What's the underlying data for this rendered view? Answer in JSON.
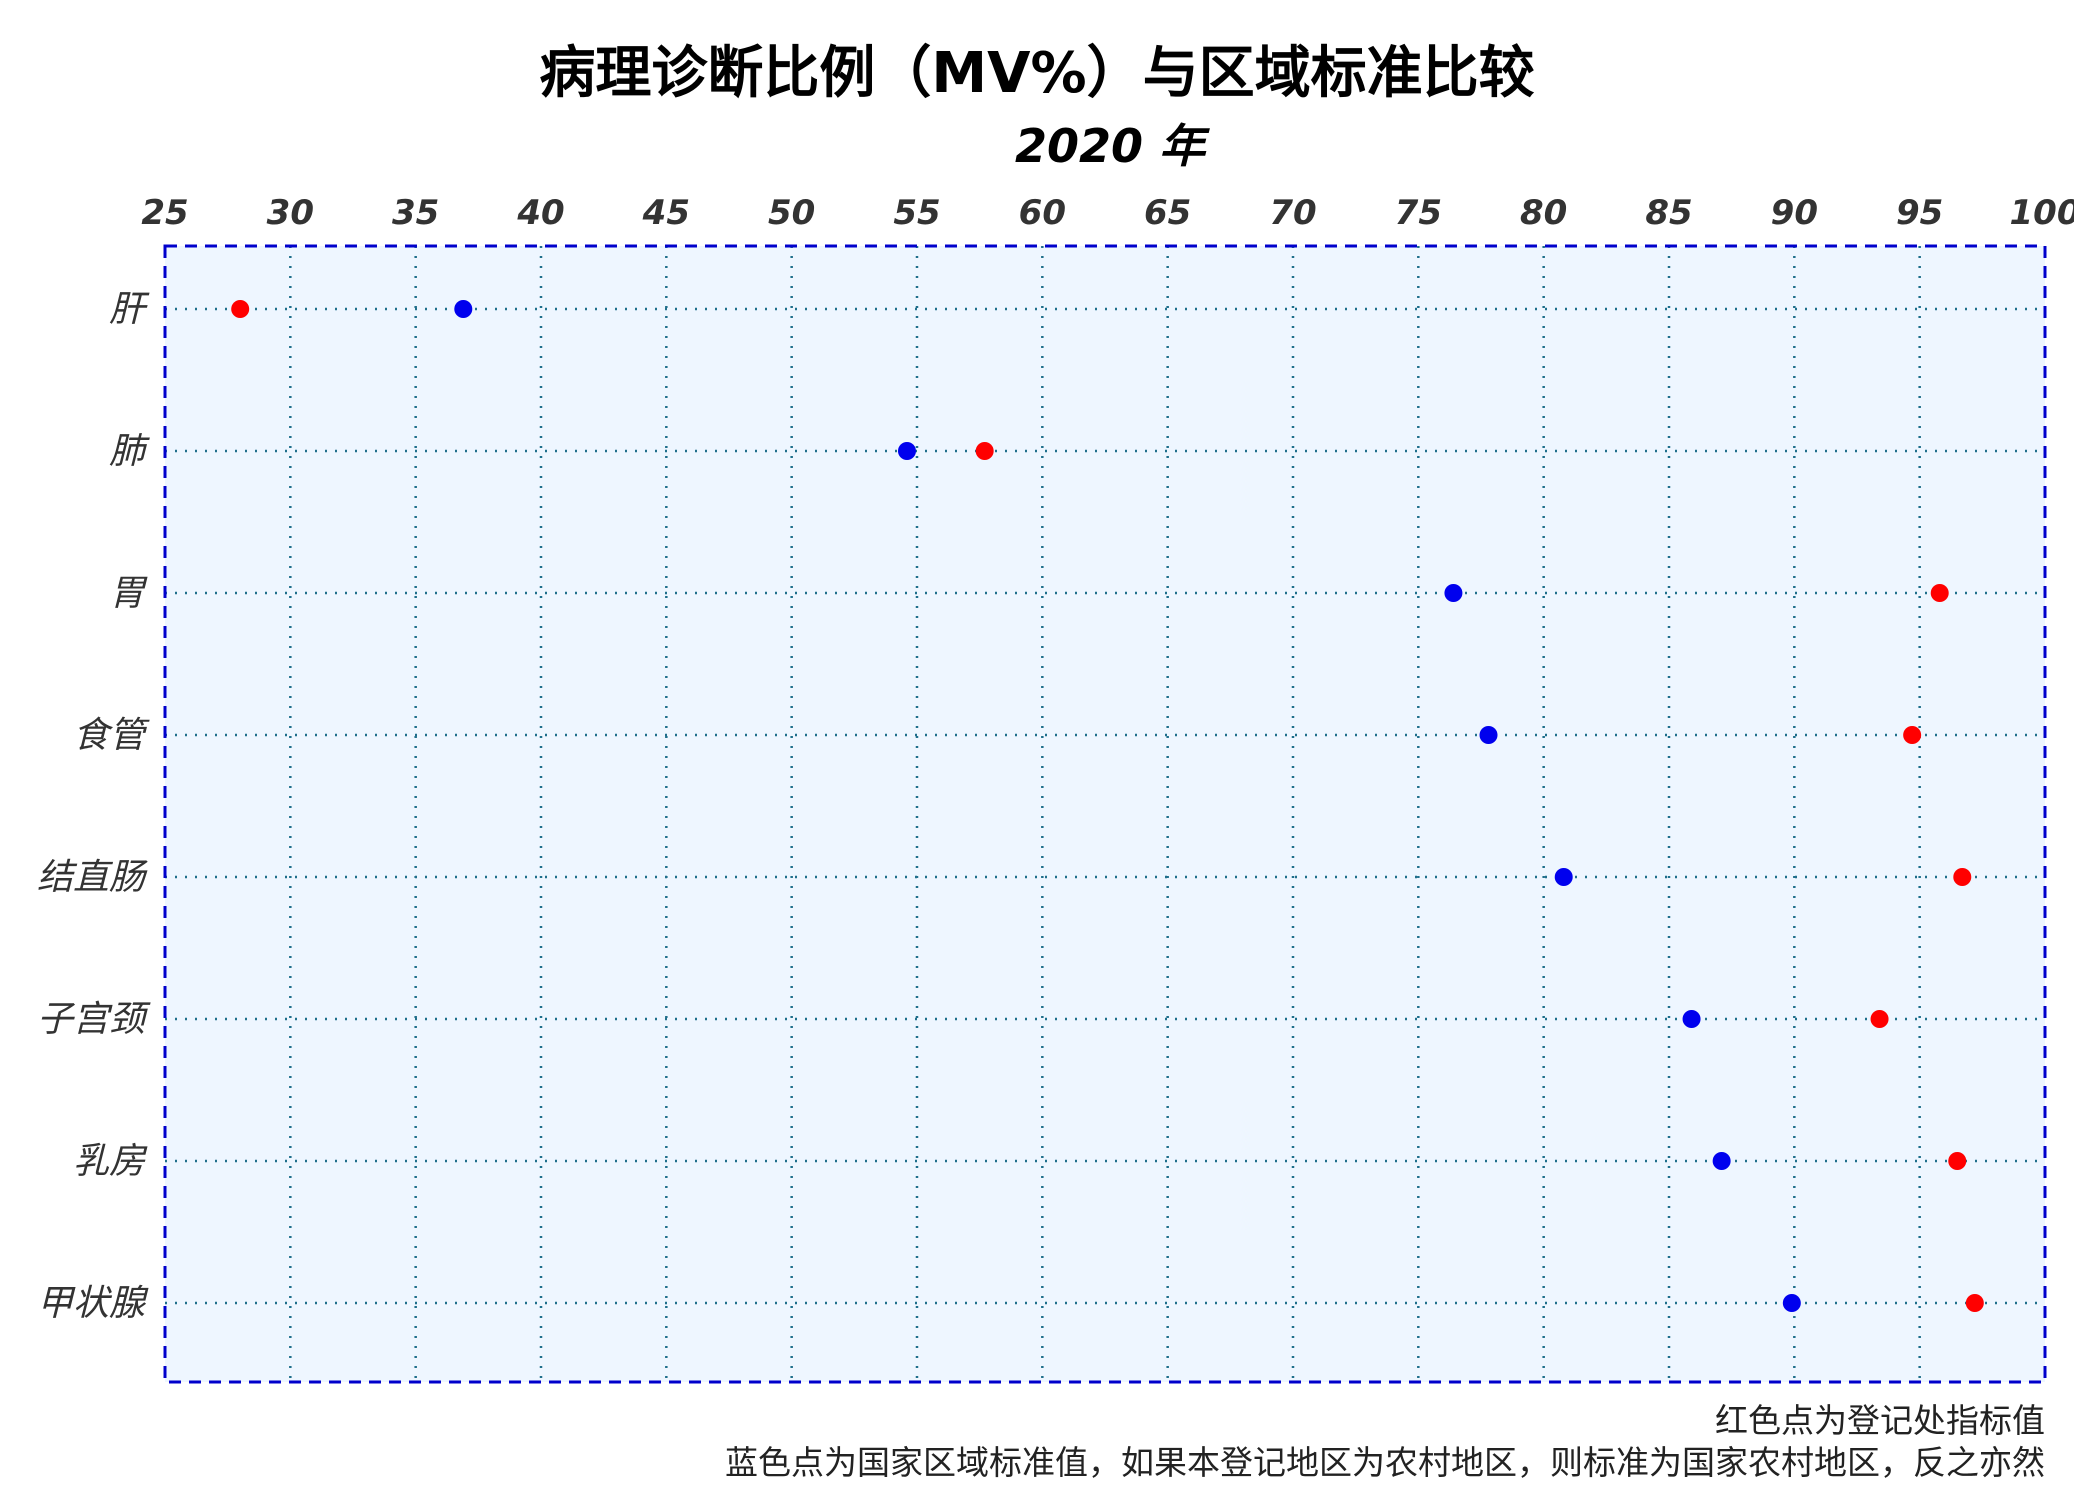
{
  "chart_data": {
    "type": "scatter",
    "title": "病理诊断比例（MV%）与区域标准比较",
    "subtitle": "2020 年",
    "x_axis": {
      "position": "top",
      "min": 25,
      "max": 100,
      "ticks": [
        25,
        30,
        35,
        40,
        45,
        50,
        55,
        60,
        65,
        70,
        75,
        80,
        85,
        90,
        95,
        100
      ],
      "tick_labels": [
        "25",
        "30",
        "35",
        "40",
        "45",
        "50",
        "55",
        "60",
        "65",
        "70",
        "75",
        "80",
        "85",
        "90",
        "95",
        "100"
      ]
    },
    "categories": [
      "肝",
      "肺",
      "胃",
      "食管",
      "结直肠",
      "子宫颈",
      "乳房",
      "甲状腺"
    ],
    "series": [
      {
        "color": "#ff0000",
        "values": [
          28.0,
          57.7,
          95.8,
          94.7,
          96.7,
          93.4,
          96.5,
          97.2
        ]
      },
      {
        "color": "#0000ee",
        "values": [
          36.9,
          54.6,
          76.4,
          77.8,
          80.8,
          85.9,
          87.1,
          89.9
        ]
      }
    ],
    "grid": true,
    "grid_color": "#1f6f8b",
    "plot_background": "#eef6ff",
    "border_color": "#0000cc",
    "notes": [
      "红色点为登记处指标值",
      "蓝色点为国家区域标准值，如果本登记地区为农村地区，则标准为国家农村地区，反之亦然"
    ]
  }
}
